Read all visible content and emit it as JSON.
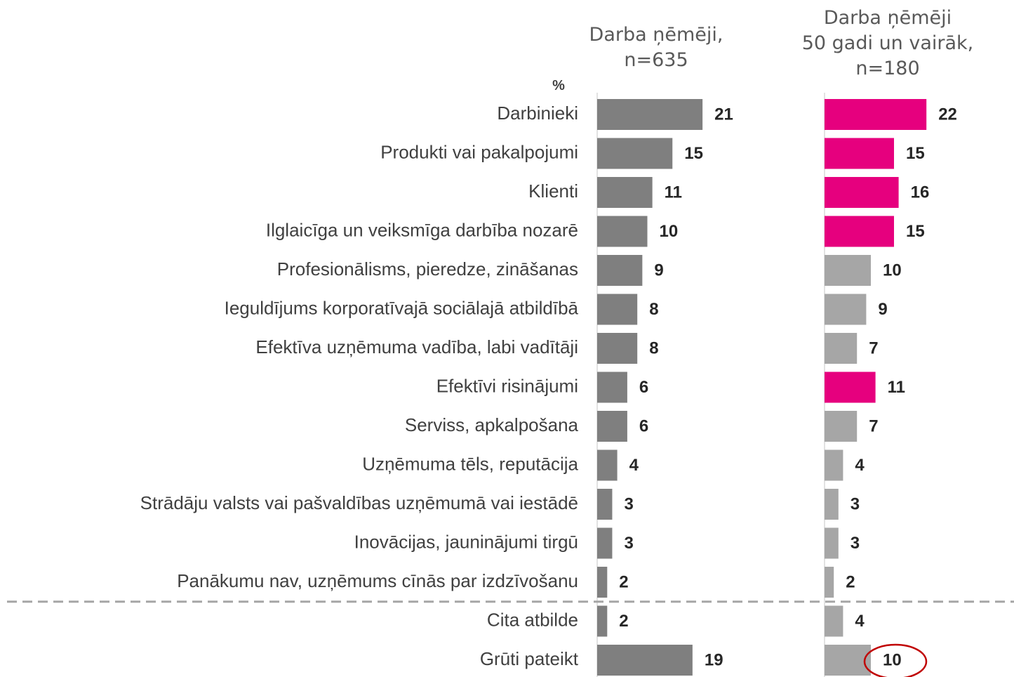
{
  "chart_data": {
    "type": "bar",
    "orientation": "horizontal",
    "unit_label": "%",
    "categories": [
      "Darbinieki",
      "Produkti vai pakalpojumi",
      "Klienti",
      "Ilglaicīga un veiksmīga darbība nozarē",
      "Profesionālisms, pieredze, zināšanas",
      "Ieguldījums korporatīvajā sociālajā atbildībā",
      "Efektīva uzņēmuma vadība, labi vadītāji",
      "Efektīvi risinājumi",
      "Serviss, apkalpošana",
      "Uzņēmuma tēls, reputācija",
      "Strādāju valsts vai pašvaldības uzņēmumā vai iestādē",
      "Inovācijas, jauninājumi tirgū",
      "Panākumu nav, uzņēmums cīnās par izdzīvošanu",
      "Cita atbilde",
      "Grūti pateikt"
    ],
    "series": [
      {
        "name": "Darba ņēmēji,\nn=635",
        "color": "#7f7f7f",
        "values": [
          21,
          15,
          11,
          10,
          9,
          8,
          8,
          6,
          6,
          4,
          3,
          3,
          2,
          2,
          19
        ]
      },
      {
        "name": "Darba ņēmēji\n50 gadi un vairāk,\nn=180",
        "colors": [
          "#e6007e",
          "#e6007e",
          "#e6007e",
          "#e6007e",
          "#a6a6a6",
          "#a6a6a6",
          "#a6a6a6",
          "#e6007e",
          "#a6a6a6",
          "#a6a6a6",
          "#a6a6a6",
          "#a6a6a6",
          "#a6a6a6",
          "#a6a6a6",
          "#a6a6a6"
        ],
        "values": [
          22,
          15,
          16,
          15,
          10,
          9,
          7,
          11,
          7,
          4,
          3,
          3,
          2,
          4,
          10
        ]
      }
    ]
  }
}
